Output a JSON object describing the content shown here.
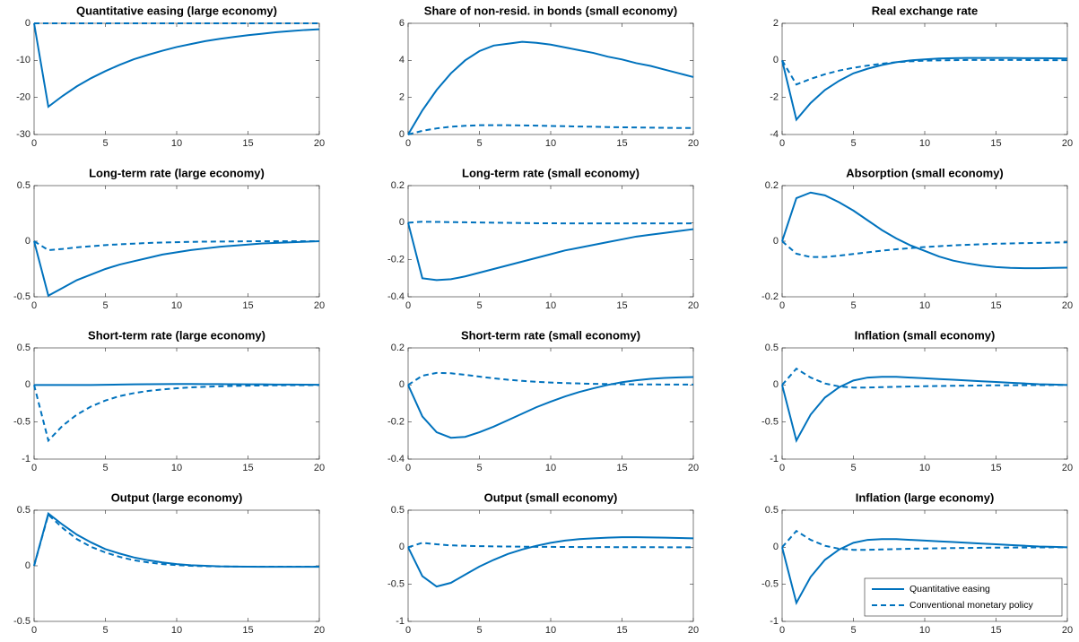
{
  "chart_data": [
    {
      "type": "line",
      "title": "Quantitative easing (large economy)",
      "x": [
        0,
        1,
        2,
        3,
        4,
        5,
        6,
        7,
        8,
        9,
        10,
        11,
        12,
        13,
        14,
        15,
        16,
        17,
        18,
        19,
        20
      ],
      "xlim": [
        0,
        20
      ],
      "xticks": [
        0,
        5,
        10,
        15,
        20
      ],
      "ylim": [
        -30,
        0
      ],
      "yticks": [
        -30,
        -20,
        -10,
        0
      ],
      "series": [
        {
          "color": "#0072bd",
          "style": "solid",
          "values": [
            0,
            -22.5,
            -19.6,
            -17.0,
            -14.8,
            -12.9,
            -11.2,
            -9.7,
            -8.5,
            -7.4,
            -6.4,
            -5.6,
            -4.8,
            -4.2,
            -3.7,
            -3.2,
            -2.8,
            -2.4,
            -2.1,
            -1.8,
            -1.6
          ]
        },
        {
          "color": "#0072bd",
          "style": "dashed",
          "values": [
            0,
            0,
            0,
            0,
            0,
            0,
            0,
            0,
            0,
            0,
            0,
            0,
            0,
            0,
            0,
            0,
            0,
            0,
            0,
            0,
            0
          ]
        }
      ]
    },
    {
      "type": "line",
      "title": "Share of non-resid. in bonds (small economy)",
      "x": [
        0,
        1,
        2,
        3,
        4,
        5,
        6,
        7,
        8,
        9,
        10,
        11,
        12,
        13,
        14,
        15,
        16,
        17,
        18,
        19,
        20
      ],
      "xlim": [
        0,
        20
      ],
      "xticks": [
        0,
        5,
        10,
        15,
        20
      ],
      "ylim": [
        0,
        6
      ],
      "yticks": [
        0,
        2,
        4,
        6
      ],
      "series": [
        {
          "color": "#0072bd",
          "style": "solid",
          "values": [
            0,
            1.3,
            2.4,
            3.3,
            4.0,
            4.5,
            4.8,
            4.9,
            5.0,
            4.95,
            4.85,
            4.7,
            4.55,
            4.4,
            4.2,
            4.05,
            3.85,
            3.7,
            3.5,
            3.3,
            3.1
          ]
        },
        {
          "color": "#0072bd",
          "style": "dashed",
          "values": [
            0,
            0.2,
            0.33,
            0.42,
            0.47,
            0.5,
            0.5,
            0.5,
            0.49,
            0.48,
            0.46,
            0.45,
            0.43,
            0.42,
            0.4,
            0.39,
            0.38,
            0.37,
            0.36,
            0.35,
            0.35
          ]
        }
      ]
    },
    {
      "type": "line",
      "title": "Real exchange rate",
      "x": [
        0,
        1,
        2,
        3,
        4,
        5,
        6,
        7,
        8,
        9,
        10,
        11,
        12,
        13,
        14,
        15,
        16,
        17,
        18,
        19,
        20
      ],
      "xlim": [
        0,
        20
      ],
      "xticks": [
        0,
        5,
        10,
        15,
        20
      ],
      "ylim": [
        -4,
        2
      ],
      "yticks": [
        -4,
        -2,
        0,
        2
      ],
      "series": [
        {
          "color": "#0072bd",
          "style": "solid",
          "values": [
            0,
            -3.2,
            -2.3,
            -1.6,
            -1.1,
            -0.7,
            -0.45,
            -0.25,
            -0.1,
            0,
            0.05,
            0.1,
            0.12,
            0.13,
            0.13,
            0.13,
            0.13,
            0.12,
            0.12,
            0.11,
            0.1
          ]
        },
        {
          "color": "#0072bd",
          "style": "dashed",
          "values": [
            0,
            -1.3,
            -1.0,
            -0.75,
            -0.55,
            -0.4,
            -0.28,
            -0.18,
            -0.1,
            -0.05,
            -0.02,
            0,
            0.01,
            0.02,
            0.02,
            0.02,
            0.02,
            0.02,
            0.01,
            0.01,
            0.01
          ]
        }
      ]
    },
    {
      "type": "line",
      "title": "Long-term rate (large economy)",
      "x": [
        0,
        1,
        2,
        3,
        4,
        5,
        6,
        7,
        8,
        9,
        10,
        11,
        12,
        13,
        14,
        15,
        16,
        17,
        18,
        19,
        20
      ],
      "xlim": [
        0,
        20
      ],
      "xticks": [
        0,
        5,
        10,
        15,
        20
      ],
      "ylim": [
        -0.5,
        0.5
      ],
      "yticks": [
        -0.5,
        0,
        0.5
      ],
      "series": [
        {
          "color": "#0072bd",
          "style": "solid",
          "values": [
            0,
            -0.49,
            -0.42,
            -0.35,
            -0.3,
            -0.25,
            -0.21,
            -0.18,
            -0.15,
            -0.12,
            -0.1,
            -0.08,
            -0.065,
            -0.05,
            -0.04,
            -0.03,
            -0.02,
            -0.015,
            -0.01,
            -0.005,
            0
          ]
        },
        {
          "color": "#0072bd",
          "style": "dashed",
          "values": [
            0,
            -0.08,
            -0.07,
            -0.055,
            -0.045,
            -0.035,
            -0.028,
            -0.022,
            -0.016,
            -0.012,
            -0.009,
            -0.006,
            -0.004,
            -0.003,
            -0.002,
            -0.001,
            0,
            0,
            0,
            0,
            0
          ]
        }
      ]
    },
    {
      "type": "line",
      "title": "Long-term rate (small economy)",
      "x": [
        0,
        1,
        2,
        3,
        4,
        5,
        6,
        7,
        8,
        9,
        10,
        11,
        12,
        13,
        14,
        15,
        16,
        17,
        18,
        19,
        20
      ],
      "xlim": [
        0,
        20
      ],
      "xticks": [
        0,
        5,
        10,
        15,
        20
      ],
      "ylim": [
        -0.4,
        0.2
      ],
      "yticks": [
        -0.4,
        -0.2,
        0,
        0.2
      ],
      "series": [
        {
          "color": "#0072bd",
          "style": "solid",
          "values": [
            0,
            -0.3,
            -0.31,
            -0.305,
            -0.29,
            -0.27,
            -0.25,
            -0.23,
            -0.21,
            -0.19,
            -0.17,
            -0.15,
            -0.135,
            -0.12,
            -0.105,
            -0.09,
            -0.075,
            -0.065,
            -0.055,
            -0.045,
            -0.035
          ]
        },
        {
          "color": "#0072bd",
          "style": "dashed",
          "values": [
            0,
            0.005,
            0.004,
            0.003,
            0.002,
            0.001,
            0,
            -0.001,
            -0.002,
            -0.003,
            -0.003,
            -0.004,
            -0.004,
            -0.004,
            -0.004,
            -0.004,
            -0.004,
            -0.004,
            -0.004,
            -0.004,
            -0.004
          ]
        }
      ]
    },
    {
      "type": "line",
      "title": "Absorption (small economy)",
      "x": [
        0,
        1,
        2,
        3,
        4,
        5,
        6,
        7,
        8,
        9,
        10,
        11,
        12,
        13,
        14,
        15,
        16,
        17,
        18,
        19,
        20
      ],
      "xlim": [
        0,
        20
      ],
      "xticks": [
        0,
        5,
        10,
        15,
        20
      ],
      "ylim": [
        -0.2,
        0.2
      ],
      "yticks": [
        -0.2,
        0,
        0.2
      ],
      "series": [
        {
          "color": "#0072bd",
          "style": "solid",
          "values": [
            0,
            0.155,
            0.175,
            0.165,
            0.14,
            0.11,
            0.075,
            0.04,
            0.01,
            -0.015,
            -0.035,
            -0.055,
            -0.07,
            -0.08,
            -0.088,
            -0.093,
            -0.096,
            -0.097,
            -0.097,
            -0.096,
            -0.095
          ]
        },
        {
          "color": "#0072bd",
          "style": "dashed",
          "values": [
            0,
            -0.045,
            -0.057,
            -0.057,
            -0.052,
            -0.046,
            -0.04,
            -0.034,
            -0.029,
            -0.025,
            -0.021,
            -0.018,
            -0.015,
            -0.013,
            -0.011,
            -0.009,
            -0.008,
            -0.007,
            -0.006,
            -0.005,
            -0.004
          ]
        }
      ]
    },
    {
      "type": "line",
      "title": "Short-term rate (large economy)",
      "x": [
        0,
        1,
        2,
        3,
        4,
        5,
        6,
        7,
        8,
        9,
        10,
        11,
        12,
        13,
        14,
        15,
        16,
        17,
        18,
        19,
        20
      ],
      "xlim": [
        0,
        20
      ],
      "xticks": [
        0,
        5,
        10,
        15,
        20
      ],
      "ylim": [
        -1,
        0.5
      ],
      "yticks": [
        -1,
        -0.5,
        0,
        0.5
      ],
      "series": [
        {
          "color": "#0072bd",
          "style": "solid",
          "values": [
            0,
            0,
            0,
            0,
            0,
            0.002,
            0.005,
            0.008,
            0.01,
            0.012,
            0.013,
            0.013,
            0.012,
            0.011,
            0.01,
            0.009,
            0.008,
            0.006,
            0.005,
            0.004,
            0.003
          ]
        },
        {
          "color": "#0072bd",
          "style": "dashed",
          "values": [
            0,
            -0.75,
            -0.55,
            -0.4,
            -0.29,
            -0.21,
            -0.15,
            -0.11,
            -0.08,
            -0.06,
            -0.045,
            -0.033,
            -0.025,
            -0.018,
            -0.013,
            -0.01,
            -0.007,
            -0.005,
            -0.004,
            -0.003,
            -0.002
          ]
        }
      ]
    },
    {
      "type": "line",
      "title": "Short-term rate (small economy)",
      "x": [
        0,
        1,
        2,
        3,
        4,
        5,
        6,
        7,
        8,
        9,
        10,
        11,
        12,
        13,
        14,
        15,
        16,
        17,
        18,
        19,
        20
      ],
      "xlim": [
        0,
        20
      ],
      "xticks": [
        0,
        5,
        10,
        15,
        20
      ],
      "ylim": [
        -0.4,
        0.2
      ],
      "yticks": [
        -0.4,
        -0.2,
        0,
        0.2
      ],
      "series": [
        {
          "color": "#0072bd",
          "style": "solid",
          "values": [
            0,
            -0.17,
            -0.255,
            -0.285,
            -0.28,
            -0.255,
            -0.225,
            -0.19,
            -0.155,
            -0.12,
            -0.09,
            -0.062,
            -0.038,
            -0.018,
            0,
            0.015,
            0.025,
            0.033,
            0.038,
            0.041,
            0.043
          ]
        },
        {
          "color": "#0072bd",
          "style": "dashed",
          "values": [
            0,
            0.05,
            0.065,
            0.063,
            0.055,
            0.045,
            0.036,
            0.028,
            0.022,
            0.017,
            0.013,
            0.01,
            0.008,
            0.006,
            0.005,
            0.004,
            0.003,
            0.003,
            0.002,
            0.002,
            0.002
          ]
        }
      ]
    },
    {
      "type": "line",
      "title": "Inflation (small economy)",
      "x": [
        0,
        1,
        2,
        3,
        4,
        5,
        6,
        7,
        8,
        9,
        10,
        11,
        12,
        13,
        14,
        15,
        16,
        17,
        18,
        19,
        20
      ],
      "xlim": [
        0,
        20
      ],
      "xticks": [
        0,
        5,
        10,
        15,
        20
      ],
      "ylim": [
        -1,
        0.5
      ],
      "yticks": [
        -1,
        -0.5,
        0,
        0.5
      ],
      "series": [
        {
          "color": "#0072bd",
          "style": "solid",
          "values": [
            0,
            -0.75,
            -0.4,
            -0.17,
            -0.03,
            0.06,
            0.1,
            0.11,
            0.11,
            0.1,
            0.09,
            0.08,
            0.07,
            0.06,
            0.05,
            0.04,
            0.03,
            0.02,
            0.01,
            0.005,
            0
          ]
        },
        {
          "color": "#0072bd",
          "style": "dashed",
          "values": [
            0,
            0.22,
            0.1,
            0.02,
            -0.02,
            -0.035,
            -0.035,
            -0.03,
            -0.025,
            -0.02,
            -0.017,
            -0.014,
            -0.011,
            -0.009,
            -0.007,
            -0.005,
            -0.004,
            -0.003,
            -0.002,
            -0.001,
            0
          ]
        }
      ]
    },
    {
      "type": "line",
      "title": "Output (large economy)",
      "x": [
        0,
        1,
        2,
        3,
        4,
        5,
        6,
        7,
        8,
        9,
        10,
        11,
        12,
        13,
        14,
        15,
        16,
        17,
        18,
        19,
        20
      ],
      "xlim": [
        0,
        20
      ],
      "xticks": [
        0,
        5,
        10,
        15,
        20
      ],
      "ylim": [
        -0.5,
        0.5
      ],
      "yticks": [
        -0.5,
        0,
        0.5
      ],
      "series": [
        {
          "color": "#0072bd",
          "style": "solid",
          "values": [
            0,
            0.47,
            0.37,
            0.28,
            0.21,
            0.15,
            0.11,
            0.075,
            0.05,
            0.03,
            0.015,
            0.005,
            0,
            -0.005,
            -0.007,
            -0.008,
            -0.009,
            -0.009,
            -0.009,
            -0.009,
            -0.009
          ]
        },
        {
          "color": "#0072bd",
          "style": "dashed",
          "values": [
            0,
            0.46,
            0.34,
            0.24,
            0.17,
            0.12,
            0.08,
            0.05,
            0.03,
            0.015,
            0.006,
            0,
            -0.004,
            -0.006,
            -0.007,
            -0.008,
            -0.008,
            -0.008,
            -0.008,
            -0.008,
            -0.008
          ]
        }
      ]
    },
    {
      "type": "line",
      "title": "Output (small economy)",
      "x": [
        0,
        1,
        2,
        3,
        4,
        5,
        6,
        7,
        8,
        9,
        10,
        11,
        12,
        13,
        14,
        15,
        16,
        17,
        18,
        19,
        20
      ],
      "xlim": [
        0,
        20
      ],
      "xticks": [
        0,
        5,
        10,
        15,
        20
      ],
      "ylim": [
        -1,
        0.5
      ],
      "yticks": [
        -1,
        -0.5,
        0,
        0.5
      ],
      "series": [
        {
          "color": "#0072bd",
          "style": "solid",
          "values": [
            0,
            -0.39,
            -0.53,
            -0.48,
            -0.37,
            -0.26,
            -0.17,
            -0.09,
            -0.03,
            0.02,
            0.06,
            0.09,
            0.11,
            0.12,
            0.13,
            0.135,
            0.135,
            0.133,
            0.13,
            0.125,
            0.12
          ]
        },
        {
          "color": "#0072bd",
          "style": "dashed",
          "values": [
            0,
            0.06,
            0.04,
            0.025,
            0.02,
            0.015,
            0.012,
            0.01,
            0.008,
            0.006,
            0.005,
            0.004,
            0.003,
            0.002,
            0.002,
            0.001,
            0.001,
            0.001,
            0,
            0,
            0
          ]
        }
      ]
    },
    {
      "type": "line",
      "title": "Inflation (large economy)",
      "x": [
        0,
        1,
        2,
        3,
        4,
        5,
        6,
        7,
        8,
        9,
        10,
        11,
        12,
        13,
        14,
        15,
        16,
        17,
        18,
        19,
        20
      ],
      "xlim": [
        0,
        20
      ],
      "xticks": [
        0,
        5,
        10,
        15,
        20
      ],
      "ylim": [
        -1,
        0.5
      ],
      "yticks": [
        -1,
        -0.5,
        0,
        0.5
      ],
      "legend": "lower right",
      "series": [
        {
          "name": "Quantitative easing",
          "color": "#0072bd",
          "style": "solid",
          "values": [
            0,
            -0.75,
            -0.4,
            -0.17,
            -0.03,
            0.06,
            0.1,
            0.11,
            0.11,
            0.1,
            0.09,
            0.08,
            0.07,
            0.06,
            0.05,
            0.04,
            0.03,
            0.02,
            0.01,
            0.005,
            0
          ]
        },
        {
          "name": "Conventional monetary policy",
          "color": "#0072bd",
          "style": "dashed",
          "values": [
            0,
            0.22,
            0.1,
            0.02,
            -0.02,
            -0.035,
            -0.035,
            -0.03,
            -0.025,
            -0.02,
            -0.017,
            -0.014,
            -0.011,
            -0.009,
            -0.007,
            -0.005,
            -0.004,
            -0.003,
            -0.002,
            -0.001,
            0
          ]
        }
      ]
    }
  ]
}
